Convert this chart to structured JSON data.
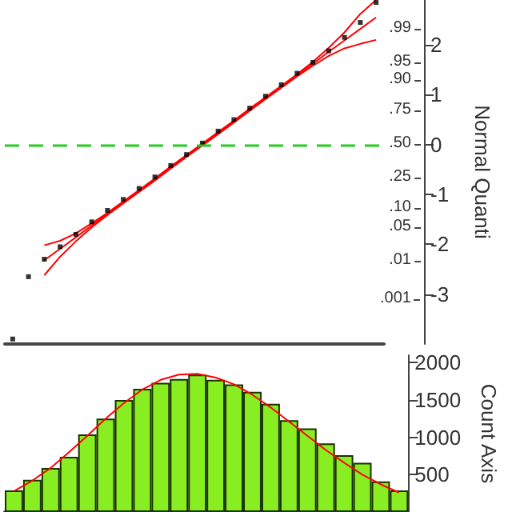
{
  "chart_data": [
    {
      "type": "scatter",
      "ylabel": "Normal Quanti",
      "categories": [
        null,
        null,
        null,
        null,
        null,
        null,
        null,
        null,
        null,
        null,
        null,
        null,
        null,
        null,
        null,
        null,
        null,
        null,
        null,
        null,
        null,
        null,
        null,
        null
      ],
      "series": [
        {
          "color": "#000000",
          "marker": "square",
          "values": [
            -3.9,
            -2.65,
            -2.3,
            -2.05,
            -1.8,
            -1.55,
            -1.32,
            -1.1,
            -0.88,
            -0.65,
            -0.42,
            -0.2,
            0.03,
            0.27,
            0.5,
            0.73,
            0.97,
            1.2,
            1.43,
            1.65,
            1.88,
            2.15,
            2.45,
            2.85
          ]
        },
        {
          "type": "line",
          "color": "#ff0000",
          "values": [
            null,
            null,
            -2.32,
            -2.09,
            -1.86,
            -1.62,
            -1.39,
            -1.16,
            -0.93,
            -0.7,
            -0.46,
            -0.23,
            0,
            0.23,
            0.46,
            0.7,
            0.93,
            1.16,
            1.39,
            1.62,
            1.86,
            2.09,
            2.32,
            2.55
          ]
        },
        {
          "type": "line",
          "color": "#ff0000",
          "values": [
            null,
            null,
            -2.62,
            -2.25,
            -1.94,
            -1.66,
            -1.41,
            -1.18,
            -0.95,
            -0.72,
            -0.48,
            -0.25,
            -0.02,
            0.21,
            0.44,
            0.68,
            0.91,
            1.14,
            1.37,
            1.58,
            1.78,
            1.93,
            2.02,
            2.1
          ]
        },
        {
          "type": "line",
          "color": "#ff0000",
          "values": [
            null,
            null,
            -2.02,
            -1.93,
            -1.78,
            -1.58,
            -1.37,
            -1.14,
            -0.91,
            -0.68,
            -0.44,
            -0.21,
            0.02,
            0.25,
            0.48,
            0.72,
            0.95,
            1.18,
            1.41,
            1.66,
            1.94,
            2.25,
            2.62,
            2.9
          ]
        }
      ],
      "ylim": [
        -4,
        2.9
      ],
      "yticks": [
        -3,
        -2,
        -1,
        0,
        1,
        2
      ],
      "annotations": [
        ".001",
        ".01",
        ".05",
        ".10",
        ".25",
        ".50",
        ".75",
        ".90",
        ".95",
        ".99"
      ],
      "ref_lines": [
        {
          "axis": "y",
          "value": 0,
          "color": "#22cc22",
          "line_style": "dashed"
        }
      ],
      "tick_labels": "y",
      "grid": false
    },
    {
      "type": "bar",
      "ylabel": "Count Axis",
      "categories": [
        null,
        null,
        null,
        null,
        null,
        null,
        null,
        null,
        null,
        null,
        null,
        null,
        null,
        null,
        null,
        null,
        null,
        null,
        null,
        null,
        null,
        null
      ],
      "series": [
        {
          "color": "#88ee22",
          "values": [
            290,
            430,
            590,
            740,
            1040,
            1250,
            1500,
            1650,
            1730,
            1780,
            1840,
            1770,
            1710,
            1610,
            1450,
            1230,
            1120,
            920,
            760,
            660,
            410,
            290
          ]
        },
        {
          "type": "line",
          "color": "#ff0000",
          "values": [
            280,
            420,
            590,
            800,
            1020,
            1250,
            1460,
            1640,
            1770,
            1840,
            1850,
            1800,
            1710,
            1570,
            1400,
            1210,
            1020,
            830,
            660,
            500,
            370,
            260
          ]
        }
      ],
      "ylim": [
        0,
        2100
      ],
      "yticks": [
        500,
        1000,
        1500,
        2000
      ],
      "tick_labels": "y",
      "grid": false
    }
  ]
}
